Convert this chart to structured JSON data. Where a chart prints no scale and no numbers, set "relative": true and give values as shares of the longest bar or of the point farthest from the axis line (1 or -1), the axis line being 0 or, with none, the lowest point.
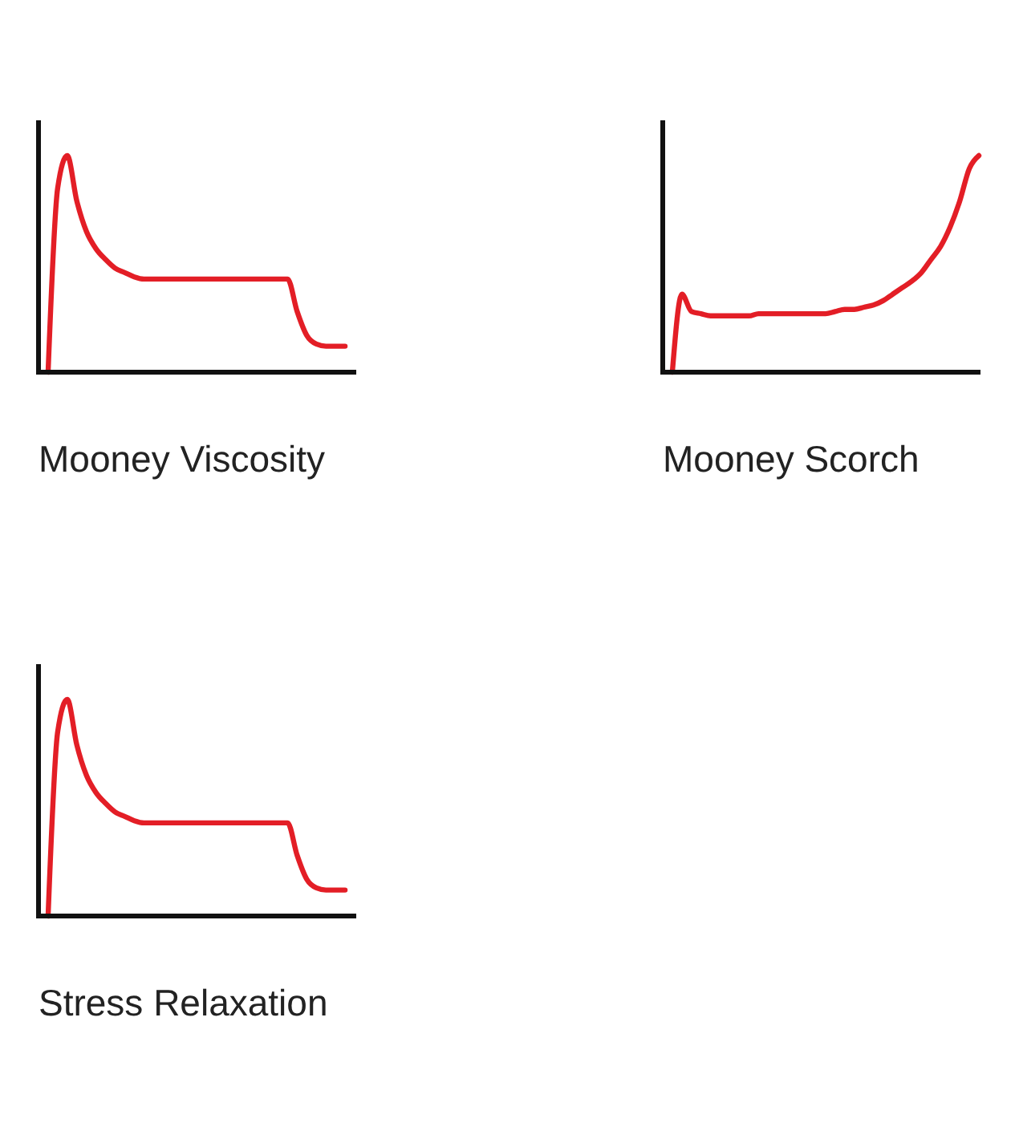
{
  "chart_data": [
    {
      "type": "line",
      "title": "Mooney Viscosity",
      "relative": true,
      "color": "#e31e26",
      "categories": [
        null,
        null,
        null,
        null,
        null,
        null,
        null,
        null,
        null,
        null,
        null,
        null,
        null,
        null,
        null,
        null,
        null,
        null,
        null,
        null,
        null,
        null,
        null,
        null,
        null,
        null,
        null,
        null,
        null,
        null,
        null,
        null,
        null,
        null
      ],
      "values": [
        null,
        0,
        0.85,
        1,
        0.79,
        0.65,
        0.57,
        0.52,
        0.48,
        0.46,
        0.44,
        0.43,
        0.43,
        0.43,
        0.43,
        0.43,
        0.43,
        0.43,
        0.43,
        0.43,
        0.43,
        0.43,
        0.43,
        0.43,
        0.43,
        0.43,
        0.43,
        0.28,
        0.17,
        0.13,
        0.12,
        0.12,
        0.12,
        null
      ]
    },
    {
      "type": "line",
      "title": "Mooney Scorch",
      "relative": true,
      "color": "#e31e26",
      "categories": [
        null,
        null,
        null,
        null,
        null,
        null,
        null,
        null,
        null,
        null,
        null,
        null,
        null,
        null,
        null,
        null,
        null,
        null,
        null,
        null,
        null,
        null,
        null,
        null,
        null,
        null,
        null,
        null,
        null,
        null,
        null,
        null,
        null,
        null
      ],
      "values": [
        null,
        0,
        0.36,
        0.28,
        0.27,
        0.26,
        0.26,
        0.26,
        0.26,
        0.26,
        0.27,
        0.27,
        0.27,
        0.27,
        0.27,
        0.27,
        0.27,
        0.27,
        0.28,
        0.29,
        0.29,
        0.3,
        0.31,
        0.33,
        0.36,
        0.39,
        0.42,
        0.46,
        0.52,
        0.58,
        0.67,
        0.79,
        0.94,
        1
      ]
    },
    {
      "type": "line",
      "title": "Stress Relaxation",
      "relative": true,
      "color": "#e31e26",
      "categories": [
        null,
        null,
        null,
        null,
        null,
        null,
        null,
        null,
        null,
        null,
        null,
        null,
        null,
        null,
        null,
        null,
        null,
        null,
        null,
        null,
        null,
        null,
        null,
        null,
        null,
        null,
        null,
        null,
        null,
        null,
        null,
        null,
        null,
        null
      ],
      "values": [
        null,
        0,
        0.85,
        1,
        0.79,
        0.65,
        0.57,
        0.52,
        0.48,
        0.46,
        0.44,
        0.43,
        0.43,
        0.43,
        0.43,
        0.43,
        0.43,
        0.43,
        0.43,
        0.43,
        0.43,
        0.43,
        0.43,
        0.43,
        0.43,
        0.43,
        0.43,
        0.28,
        0.17,
        0.13,
        0.12,
        0.12,
        0.12,
        null
      ]
    }
  ]
}
